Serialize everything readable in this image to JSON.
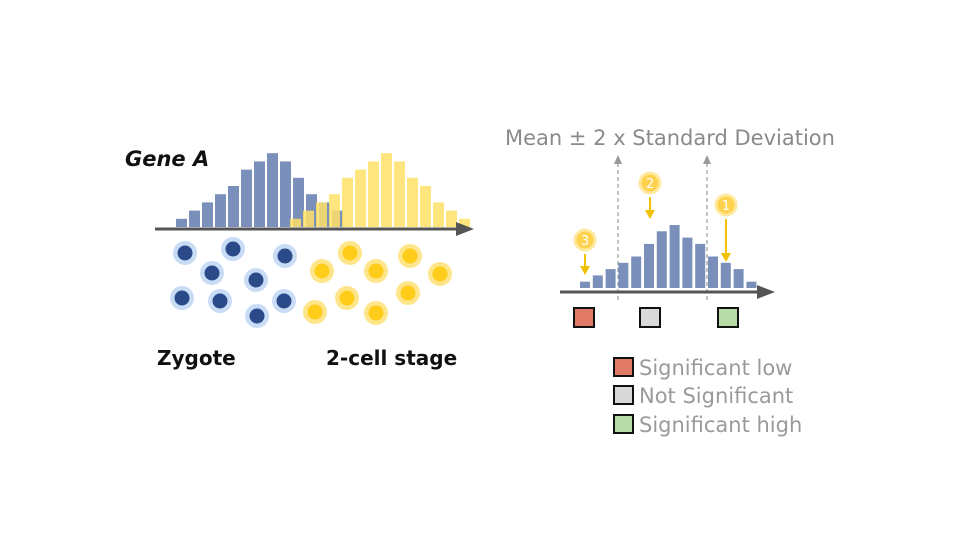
{
  "gene_label": "Gene A",
  "stage_labels": [
    "Zygote",
    "2-cell stage"
  ],
  "threshold_title": "Mean ± 2 x Standard Deviation",
  "markers": [
    "1",
    "2",
    "3"
  ],
  "legend": [
    {
      "label": "Significant low",
      "color": "#e07a66"
    },
    {
      "label": "Not Significant",
      "color": "#d9d9d9"
    },
    {
      "label": "Significant high",
      "color": "#b7dca8"
    }
  ],
  "colors": {
    "zygote": "#2a4a8a",
    "zygote_halo": "#c8dcf5",
    "two_cell": "#ffcc1a",
    "two_cell_halo": "#ffe58a",
    "bar_blue": "#7b8fbb",
    "bar_yellow": "#ffe066",
    "axis": "#555555",
    "arrow": "#f2c200"
  },
  "chart_data": [
    {
      "type": "bar",
      "title": "Gene A",
      "series": [
        {
          "name": "Zygote",
          "values": [
            1,
            2,
            3,
            4,
            5,
            7,
            8,
            9,
            8,
            6,
            4,
            3,
            2
          ]
        },
        {
          "name": "2-cell stage",
          "values": [
            1,
            2,
            3,
            4,
            6,
            7,
            8,
            9,
            8,
            6,
            5,
            3,
            2,
            1
          ]
        }
      ]
    },
    {
      "type": "bar",
      "title": "Mean ± 2 x Standard Deviation",
      "values": [
        1,
        2,
        3,
        4,
        5,
        7,
        9,
        10,
        8,
        7,
        5,
        4,
        3,
        1
      ]
    }
  ]
}
